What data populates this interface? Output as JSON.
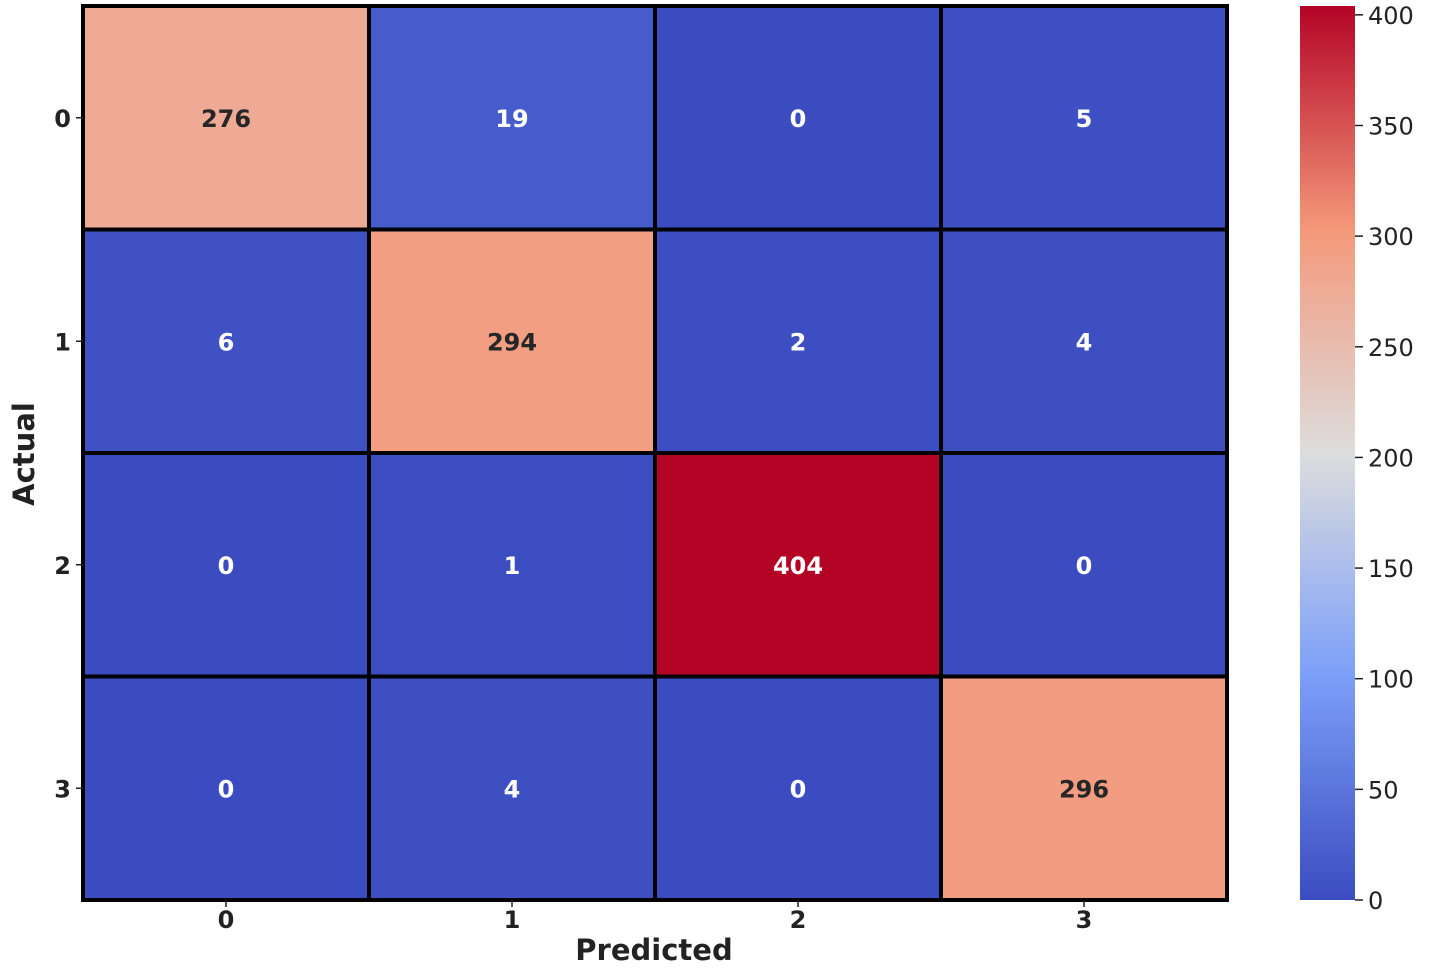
{
  "chart_data": {
    "type": "heatmap",
    "title": "",
    "xlabel": "Predicted",
    "ylabel": "Actual",
    "x_categories": [
      "0",
      "1",
      "2",
      "3"
    ],
    "y_categories": [
      "0",
      "1",
      "2",
      "3"
    ],
    "values": [
      [
        276,
        19,
        0,
        5
      ],
      [
        6,
        294,
        2,
        4
      ],
      [
        0,
        1,
        404,
        0
      ],
      [
        0,
        4,
        0,
        296
      ]
    ],
    "colormap": "coolwarm",
    "vmin": 0,
    "vmax": 404,
    "colorbar_ticks": [
      0,
      50,
      100,
      150,
      200,
      250,
      300,
      350,
      400
    ],
    "colorbar_location": "right",
    "grid_line_color": "#000000"
  }
}
